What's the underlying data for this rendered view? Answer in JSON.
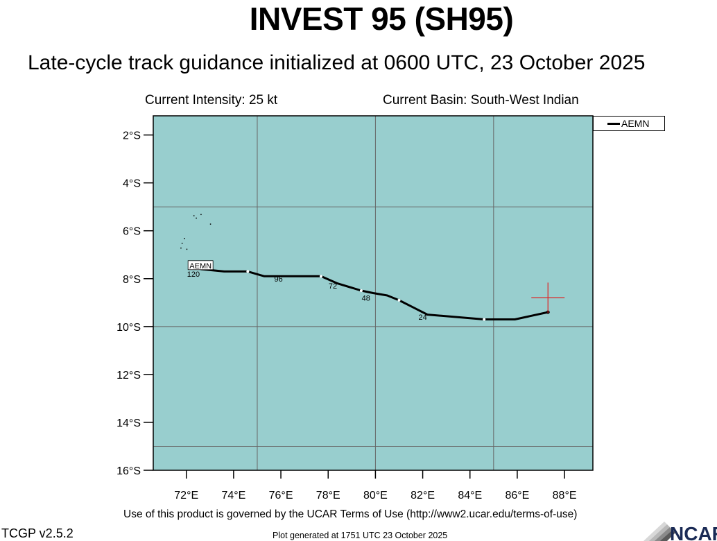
{
  "header": {
    "title": "INVEST 95 (SH95)",
    "subtitle": "Late-cycle track guidance initialized at 0600 UTC, 23 October 2025",
    "intensity": "Current Intensity: 25 kt",
    "basin": "Current Basin: South-West Indian"
  },
  "footer": {
    "terms": "Use of this product is governed by the UCAR Terms of Use (http://www2.ucar.edu/terms-of-use)",
    "version": "TCGP v2.5.2",
    "generated": "Plot generated at 1751 UTC   23 October 2025",
    "logo_text": "NCAR"
  },
  "colors": {
    "ocean": "#98cece",
    "grid": "#666666",
    "track": "#000000",
    "current_position_marker": "#e02020",
    "land": "#000000"
  },
  "chart_data": {
    "type": "line",
    "title": "INVEST 95 (SH95)",
    "xlabel": "",
    "ylabel": "",
    "xlim": [
      70.6,
      89.2
    ],
    "ylim": [
      -16.0,
      -1.2
    ],
    "x_ticks": [
      72,
      74,
      76,
      78,
      80,
      82,
      84,
      86,
      88
    ],
    "x_tick_labels": [
      "72°E",
      "74°E",
      "76°E",
      "78°E",
      "80°E",
      "82°E",
      "84°E",
      "86°E",
      "88°E"
    ],
    "y_ticks": [
      -2,
      -4,
      -6,
      -8,
      -10,
      -12,
      -14,
      -16
    ],
    "y_tick_labels": [
      "2°S",
      "4°S",
      "6°S",
      "8°S",
      "10°S",
      "12°S",
      "14°S",
      "16°S"
    ],
    "grid_lon": [
      75,
      80,
      85
    ],
    "grid_lat": [
      -5,
      -10,
      -15
    ],
    "legend": {
      "placement": "outside-top-right",
      "entries": [
        "AEMN"
      ]
    },
    "current_position": {
      "lon": 87.3,
      "lat": -8.8
    },
    "series": [
      {
        "name": "AEMN",
        "points": [
          {
            "lon": 87.3,
            "lat": -9.4
          },
          {
            "lon": 85.9,
            "lat": -9.7
          },
          {
            "lon": 84.6,
            "lat": -9.7
          },
          {
            "lon": 82.2,
            "lat": -9.5
          },
          {
            "lon": 81.6,
            "lat": -9.2
          },
          {
            "lon": 81.0,
            "lat": -8.9
          },
          {
            "lon": 80.5,
            "lat": -8.7
          },
          {
            "lon": 79.9,
            "lat": -8.6
          },
          {
            "lon": 79.4,
            "lat": -8.5
          },
          {
            "lon": 78.4,
            "lat": -8.2
          },
          {
            "lon": 77.7,
            "lat": -7.9
          },
          {
            "lon": 76.2,
            "lat": -7.9
          },
          {
            "lon": 75.3,
            "lat": -7.9
          },
          {
            "lon": 74.6,
            "lat": -7.7
          },
          {
            "lon": 73.6,
            "lat": -7.7
          },
          {
            "lon": 72.6,
            "lat": -7.6
          }
        ],
        "tau_markers": [
          {
            "lon": 84.6,
            "lat": -9.7
          },
          {
            "lon": 81.0,
            "lat": -8.9
          },
          {
            "lon": 79.4,
            "lat": -8.5
          },
          {
            "lon": 77.7,
            "lat": -7.9
          },
          {
            "lon": 74.6,
            "lat": -7.7
          }
        ],
        "tau_labels": [
          {
            "text": "24",
            "lon": 82.0,
            "lat": -9.6
          },
          {
            "text": "48",
            "lon": 79.6,
            "lat": -8.8
          },
          {
            "text": "72",
            "lon": 78.2,
            "lat": -8.3
          },
          {
            "text": "96",
            "lon": 75.9,
            "lat": -8.0
          },
          {
            "text": "120",
            "lon": 72.3,
            "lat": -7.8
          }
        ],
        "end_label": {
          "text": "AEMN",
          "lon": 72.6,
          "lat": -7.45
        }
      }
    ]
  }
}
